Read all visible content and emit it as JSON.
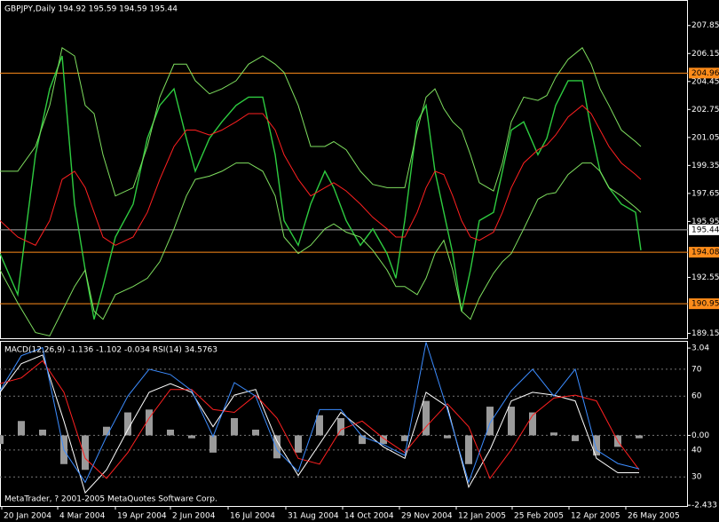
{
  "chart_data": [
    {
      "type": "line",
      "title": "GBPJPY,Daily  194.92 195.59 194.59 195.44",
      "x": [
        0,
        10,
        20,
        28,
        35,
        42,
        48,
        53,
        58,
        65,
        75,
        83,
        90,
        98,
        105,
        110,
        118,
        125,
        133,
        140,
        148,
        155,
        160,
        168,
        175,
        183,
        188,
        195,
        203,
        210,
        218,
        223,
        228,
        235,
        240,
        245,
        250,
        255,
        260,
        265,
        270,
        278,
        283,
        288,
        295,
        303,
        308,
        313,
        320,
        328,
        333,
        338,
        343,
        350,
        358,
        361
      ],
      "series": [
        {
          "color": "#2ecc40",
          "values": [
            194,
            191.5,
            200,
            204,
            206,
            197,
            193,
            190,
            192,
            195,
            197,
            201,
            203,
            204,
            201,
            199,
            201,
            202,
            203,
            203.5,
            203.5,
            200,
            196,
            194.5,
            197,
            199,
            198,
            196,
            194.5,
            195.5,
            194,
            192.5,
            196,
            202,
            203,
            199,
            196.5,
            194,
            190.5,
            193,
            196,
            196.5,
            199,
            201.5,
            202,
            200,
            201,
            203,
            204.5,
            204.5,
            201.5,
            199,
            198,
            197,
            196.5,
            194.2
          ]
        },
        {
          "color": "#ff2020",
          "values": [
            196,
            195,
            194.5,
            196,
            198.5,
            199,
            198,
            196.5,
            195,
            194.5,
            195,
            196.5,
            198.5,
            200.5,
            201.5,
            201.5,
            201.2,
            201.5,
            202,
            202.5,
            202.5,
            201.5,
            200,
            198.5,
            197.5,
            198,
            198.3,
            197.8,
            197,
            196.2,
            195.5,
            195,
            195,
            196.5,
            198,
            199,
            198.8,
            197.5,
            196,
            195,
            194.8,
            195.3,
            196.5,
            198,
            199.5,
            200.3,
            200.6,
            201.2,
            202.3,
            203,
            202.5,
            201.5,
            200.5,
            199.5,
            198.8,
            198.5
          ]
        },
        {
          "color": "#7fdf5f",
          "values": [
            199,
            199,
            200.5,
            203,
            206.5,
            206,
            203,
            202.5,
            200,
            197.5,
            198,
            200.5,
            203.5,
            205.5,
            205.5,
            204.5,
            203.7,
            204,
            204.5,
            205.5,
            206,
            205.5,
            205,
            203,
            200.5,
            200.5,
            200.8,
            200.3,
            199,
            198.2,
            198,
            198,
            198,
            201.5,
            203.5,
            204,
            202.8,
            202,
            201.5,
            200,
            198.3,
            197.8,
            199.5,
            202,
            203.5,
            203.3,
            203.6,
            204.7,
            205.8,
            206.5,
            205.5,
            204,
            203,
            201.5,
            200.8,
            200.5
          ]
        },
        {
          "color": "#7fdf5f",
          "values": [
            193,
            191,
            189.2,
            189,
            190.5,
            192,
            193,
            190.5,
            190,
            191.5,
            192,
            192.5,
            193.5,
            195.5,
            197.5,
            198.5,
            198.7,
            199,
            199.5,
            199.5,
            199,
            197.5,
            195,
            194,
            194.5,
            195.5,
            195.8,
            195.3,
            195,
            194.2,
            193,
            192,
            192,
            191.5,
            192.5,
            194,
            194.8,
            193,
            190.5,
            190,
            191.3,
            192.8,
            193.5,
            194,
            195.5,
            197.3,
            197.6,
            197.7,
            198.8,
            199.5,
            199.5,
            199,
            198,
            197.5,
            196.8,
            196.5
          ]
        }
      ],
      "xlim": [
        0,
        387.5
      ],
      "ylim": [
        188.8,
        209.4
      ],
      "yticks": [
        207.85,
        206.15,
        204.45,
        202.75,
        201.05,
        199.35,
        197.65,
        195.95,
        192.55,
        189.15
      ],
      "levels": [
        204.96,
        194.08,
        190.95
      ],
      "level_color": "#ff8c1a",
      "current_price": 195.44
    },
    {
      "type": "line",
      "title": "MACD(12,26,9) -1.136 -1.102 -0.034 RSI(14) 34.5763",
      "x": [
        0,
        12,
        24,
        36,
        48,
        60,
        72,
        84,
        96,
        108,
        120,
        132,
        144,
        156,
        168,
        180,
        192,
        204,
        216,
        228,
        240,
        252,
        264,
        276,
        288,
        300,
        312,
        324,
        336,
        348,
        360
      ],
      "series": [
        {
          "type": "bar",
          "color": "#9a9a9a",
          "values": [
            -0.3,
            0.5,
            0.2,
            -1.0,
            -1.2,
            0.3,
            0.8,
            0.9,
            0.2,
            -0.1,
            -0.6,
            0.6,
            0.2,
            -0.8,
            -0.6,
            0.7,
            0.6,
            -0.3,
            -0.3,
            -0.2,
            1.2,
            -0.1,
            -1.0,
            1.0,
            1.0,
            0.8,
            0.1,
            -0.2,
            -0.7,
            -0.4,
            -0.1
          ]
        },
        {
          "color": "#ffffff",
          "values": [
            1.5,
            2.5,
            2.8,
            0.5,
            -2.0,
            -1.2,
            0.2,
            1.5,
            1.8,
            1.5,
            0.3,
            1.4,
            1.6,
            -0.2,
            -1.4,
            -0.3,
            0.8,
            0.2,
            -0.4,
            -0.8,
            1.5,
            1.0,
            -1.8,
            -0.5,
            1.2,
            1.5,
            1.4,
            1.2,
            -0.8,
            -1.3,
            -1.3
          ]
        },
        {
          "color": "#ff2020",
          "values": [
            1.8,
            2.0,
            2.6,
            1.5,
            -0.8,
            -1.5,
            -0.6,
            0.6,
            1.6,
            1.6,
            0.9,
            0.8,
            1.4,
            0.6,
            -0.8,
            -1.0,
            0.2,
            0.5,
            -0.1,
            -0.6,
            0.3,
            1.1,
            0.3,
            -1.5,
            -0.5,
            0.7,
            1.3,
            1.4,
            1.2,
            -0.2,
            -1.2
          ]
        },
        {
          "color": "#3c8cff",
          "axis": "y2",
          "values": [
            62,
            75,
            78,
            40,
            28,
            45,
            60,
            70,
            68,
            62,
            45,
            65,
            60,
            40,
            32,
            55,
            55,
            45,
            42,
            38,
            80,
            55,
            28,
            50,
            62,
            70,
            60,
            70,
            40,
            35,
            33
          ]
        }
      ],
      "xlim": [
        0,
        387.5
      ],
      "ylim": [
        -2.46,
        3.29
      ],
      "yticks": [
        3.04,
        {
          "value": 0,
          "label": "0.00"
        },
        -2.433
      ],
      "y2lim": [
        19.2,
        80.5
      ],
      "y2ticks": [
        70,
        60,
        40,
        30
      ],
      "xticks": [
        {
          "value": 1,
          "label": "20 Jan 2004"
        },
        {
          "value": 32.5,
          "label": "4 Mar 2004"
        },
        {
          "value": 65,
          "label": "19 Apr 2004"
        },
        {
          "value": 96,
          "label": "2 Jun 2004"
        },
        {
          "value": 128.5,
          "label": "16 Jul 2004"
        },
        {
          "value": 161,
          "label": "31 Aug 2004"
        },
        {
          "value": 193,
          "label": "14 Oct 2004"
        },
        {
          "value": 225,
          "label": "29 Nov 2004"
        },
        {
          "value": 257,
          "label": "12 Jan 2005"
        },
        {
          "value": 288.5,
          "label": "25 Feb 2005"
        },
        {
          "value": 320.5,
          "label": "12 Apr 2005"
        },
        {
          "value": 352.5,
          "label": "26 May 2005"
        }
      ]
    }
  ],
  "footer": "MetaTrader, ? 2001-2005 MetaQuotes Software Corp."
}
